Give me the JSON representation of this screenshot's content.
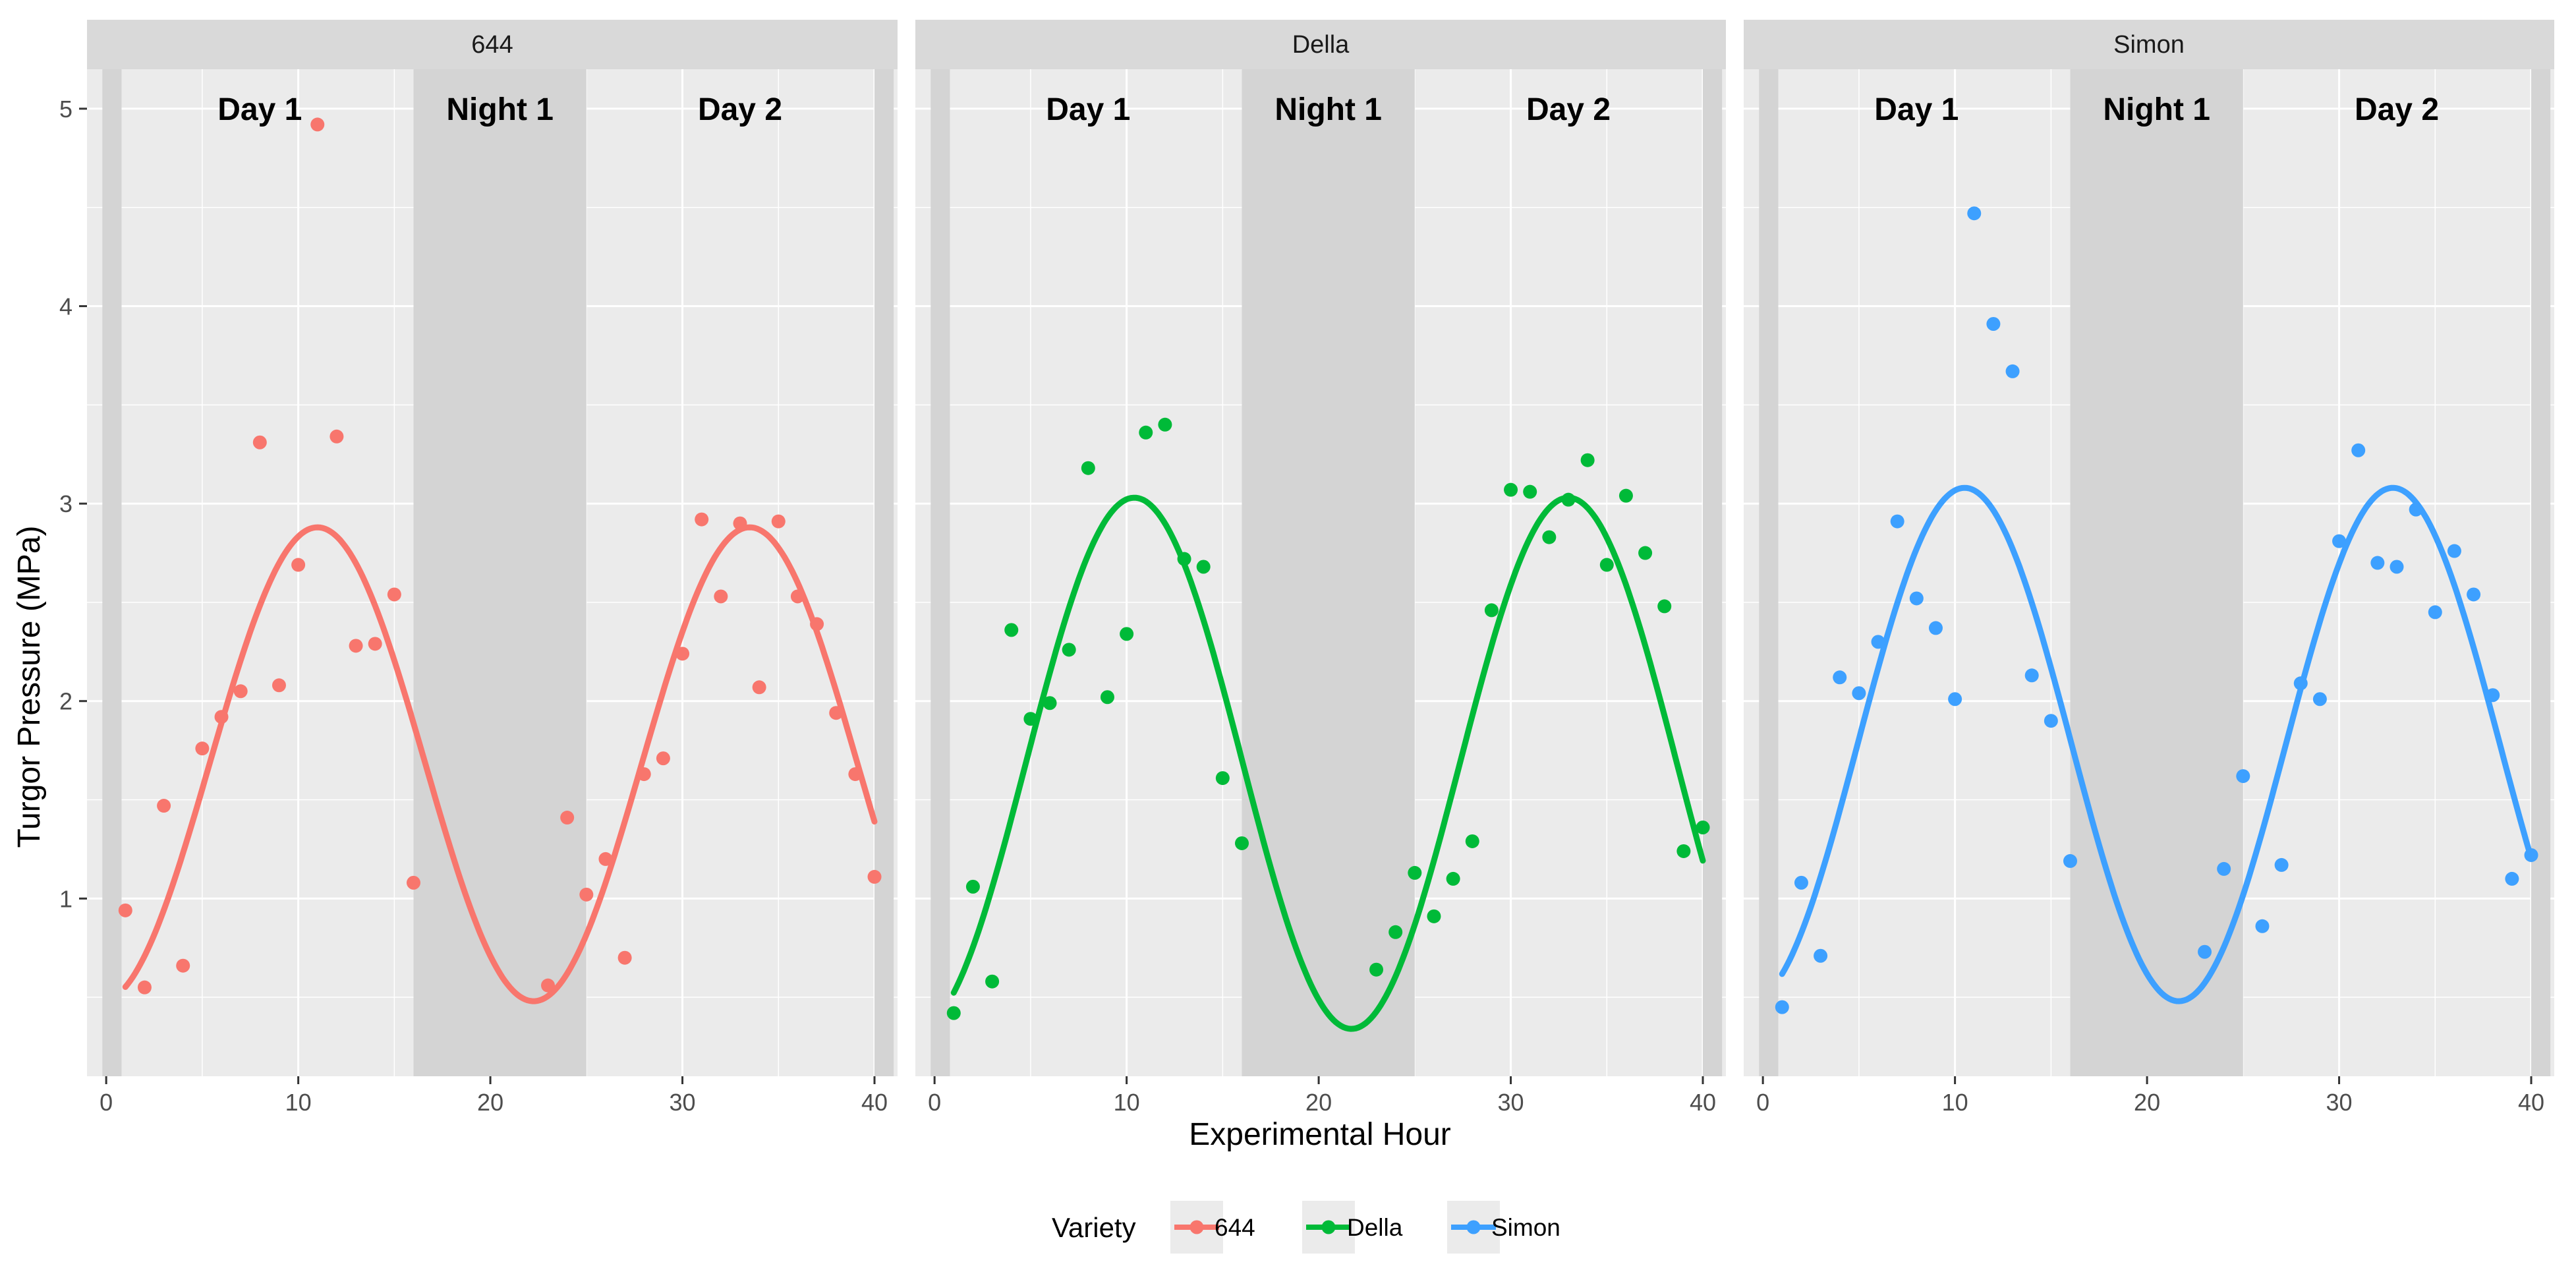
{
  "chart_data": {
    "type": "scatter",
    "xlabel": "Experimental Hour",
    "ylabel": "Turgor Pressure (MPa)",
    "xlim": [
      -1,
      41.2
    ],
    "ylim": [
      0.1,
      5.2
    ],
    "x_ticks": [
      0,
      10,
      20,
      30,
      40
    ],
    "y_ticks": [
      1,
      2,
      3,
      4,
      5
    ],
    "grid": true,
    "legend_position": "bottom",
    "legend": {
      "title": "Variety",
      "items": [
        {
          "label": "644",
          "color": "#F8766D"
        },
        {
          "label": "Della",
          "color": "#00BA38"
        },
        {
          "label": "Simon",
          "color": "#3DA0FF"
        }
      ]
    },
    "shaded_regions": [
      {
        "x0": -0.2,
        "x1": 0.8
      },
      {
        "x0": 16,
        "x1": 25
      },
      {
        "x0": 40,
        "x1": 41
      }
    ],
    "period_labels": [
      {
        "text": "Day 1",
        "x": 8
      },
      {
        "text": "Night 1",
        "x": 20.5
      },
      {
        "text": "Day 2",
        "x": 33
      },
      {
        "text_y": 5.0
      }
    ],
    "panels": [
      {
        "title": "644",
        "color": "#F8766D",
        "points": [
          [
            1,
            0.94
          ],
          [
            2,
            0.55
          ],
          [
            3,
            1.47
          ],
          [
            4,
            0.66
          ],
          [
            5,
            1.76
          ],
          [
            6,
            1.92
          ],
          [
            7,
            2.05
          ],
          [
            8,
            3.31
          ],
          [
            9,
            2.08
          ],
          [
            10,
            2.69
          ],
          [
            11,
            4.92
          ],
          [
            12,
            3.34
          ],
          [
            13,
            2.28
          ],
          [
            14,
            2.29
          ],
          [
            15,
            2.54
          ],
          [
            16,
            1.08
          ],
          [
            23,
            0.56
          ],
          [
            24,
            1.41
          ],
          [
            25,
            1.02
          ],
          [
            26,
            1.2
          ],
          [
            27,
            0.7
          ],
          [
            28,
            1.63
          ],
          [
            29,
            1.71
          ],
          [
            30,
            2.24
          ],
          [
            31,
            2.92
          ],
          [
            32,
            2.53
          ],
          [
            33,
            2.9
          ],
          [
            34,
            2.07
          ],
          [
            35,
            2.91
          ],
          [
            36,
            2.53
          ],
          [
            37,
            2.39
          ],
          [
            38,
            1.94
          ],
          [
            39,
            1.63
          ],
          [
            40,
            1.11
          ]
        ],
        "fit": {
          "mean": 1.68,
          "amplitude": 1.2,
          "peak_hour": 11,
          "period": 22.5,
          "x_range": [
            1,
            40
          ]
        }
      },
      {
        "title": "Della",
        "color": "#00BA38",
        "points": [
          [
            1,
            0.42
          ],
          [
            2,
            1.06
          ],
          [
            3,
            0.58
          ],
          [
            4,
            2.36
          ],
          [
            5,
            1.91
          ],
          [
            6,
            1.99
          ],
          [
            7,
            2.26
          ],
          [
            8,
            3.18
          ],
          [
            9,
            2.02
          ],
          [
            10,
            2.34
          ],
          [
            11,
            3.36
          ],
          [
            12,
            3.4
          ],
          [
            13,
            2.72
          ],
          [
            14,
            2.68
          ],
          [
            15,
            1.61
          ],
          [
            16,
            1.28
          ],
          [
            23,
            0.64
          ],
          [
            24,
            0.83
          ],
          [
            25,
            1.13
          ],
          [
            26,
            0.91
          ],
          [
            27,
            1.1
          ],
          [
            28,
            1.29
          ],
          [
            29,
            2.46
          ],
          [
            30,
            3.07
          ],
          [
            31,
            3.06
          ],
          [
            32,
            2.83
          ],
          [
            33,
            3.02
          ],
          [
            34,
            3.22
          ],
          [
            35,
            2.69
          ],
          [
            36,
            3.04
          ],
          [
            37,
            2.75
          ],
          [
            38,
            2.48
          ],
          [
            39,
            1.24
          ],
          [
            40,
            1.36
          ]
        ],
        "fit": {
          "mean": 1.685,
          "amplitude": 1.345,
          "peak_hour": 10.4,
          "period": 22.6,
          "x_range": [
            1,
            40
          ]
        }
      },
      {
        "title": "Simon",
        "color": "#3DA0FF",
        "points": [
          [
            1,
            0.45
          ],
          [
            2,
            1.08
          ],
          [
            3,
            0.71
          ],
          [
            4,
            2.12
          ],
          [
            5,
            2.04
          ],
          [
            6,
            2.3
          ],
          [
            7,
            2.91
          ],
          [
            8,
            2.52
          ],
          [
            9,
            2.37
          ],
          [
            10,
            2.01
          ],
          [
            11,
            4.47
          ],
          [
            12,
            3.91
          ],
          [
            13,
            3.67
          ],
          [
            14,
            2.13
          ],
          [
            15,
            1.9
          ],
          [
            16,
            1.19
          ],
          [
            23,
            0.73
          ],
          [
            24,
            1.15
          ],
          [
            25,
            1.62
          ],
          [
            26,
            0.86
          ],
          [
            27,
            1.17
          ],
          [
            28,
            2.09
          ],
          [
            29,
            2.01
          ],
          [
            30,
            2.81
          ],
          [
            31,
            3.27
          ],
          [
            32,
            2.7
          ],
          [
            33,
            2.68
          ],
          [
            34,
            2.97
          ],
          [
            35,
            2.45
          ],
          [
            36,
            2.76
          ],
          [
            37,
            2.54
          ],
          [
            38,
            2.03
          ],
          [
            39,
            1.1
          ],
          [
            40,
            1.22
          ]
        ],
        "fit": {
          "mean": 1.78,
          "amplitude": 1.3,
          "peak_hour": 10.5,
          "period": 22.3,
          "x_range": [
            1,
            40
          ]
        }
      }
    ]
  }
}
